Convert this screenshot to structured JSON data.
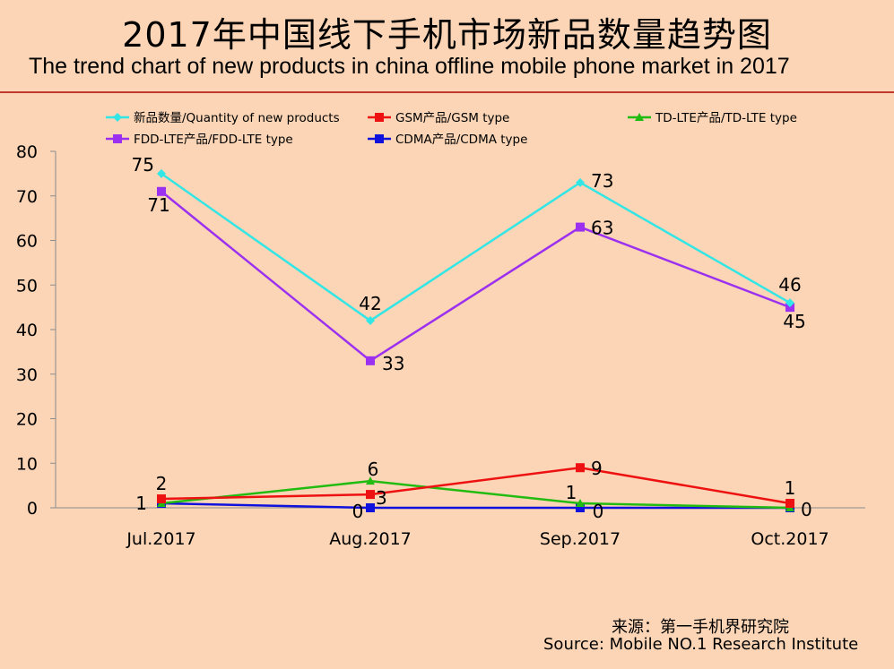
{
  "header": {
    "title_cn": "2017年中国线下手机市场新品数量趋势图",
    "title_en": "The trend chart of new products in china offline mobile phone market in 2017"
  },
  "source": {
    "cn": "来源：第一手机界研究院",
    "en": "Source: Mobile NO.1 Research Institute"
  },
  "chart_data": {
    "type": "line",
    "categories": [
      "Jul.2017",
      "Aug.2017",
      "Sep.2017",
      "Oct.2017"
    ],
    "ylim": [
      0,
      80
    ],
    "yticks": [
      0,
      10,
      20,
      30,
      40,
      50,
      60,
      70,
      80
    ],
    "grid": false,
    "legend_position": "top",
    "series": [
      {
        "name": "新品数量/Quantity of new products",
        "values": [
          75,
          42,
          73,
          46
        ],
        "color": "#33E6E6",
        "marker": "diamond"
      },
      {
        "name": "GSM产品/GSM type",
        "values": [
          2,
          3,
          9,
          1
        ],
        "color": "#EE1111",
        "marker": "square"
      },
      {
        "name": "TD-LTE产品/TD-LTE type",
        "values": [
          1,
          6,
          1,
          0
        ],
        "color": "#22BB11",
        "marker": "triangle"
      },
      {
        "name": "FDD-LTE产品/FDD-LTE type",
        "values": [
          71,
          33,
          63,
          45
        ],
        "color": "#9B30F0",
        "marker": "square"
      },
      {
        "name": "CDMA产品/CDMA type",
        "values": [
          1,
          0,
          0,
          0
        ],
        "color": "#1111DD",
        "marker": "square"
      }
    ],
    "data_labels": [
      {
        "text": "75"
      },
      {
        "text": "42"
      },
      {
        "text": "73"
      },
      {
        "text": "46"
      },
      {
        "text": "71"
      },
      {
        "text": "33"
      },
      {
        "text": "63"
      },
      {
        "text": "45"
      },
      {
        "text": "2"
      },
      {
        "text": "3"
      },
      {
        "text": "9"
      },
      {
        "text": "1"
      },
      {
        "text": "1"
      },
      {
        "text": "6"
      },
      {
        "text": "1"
      },
      {
        "text": "0"
      },
      {
        "text": "0"
      },
      {
        "text": "0"
      }
    ]
  }
}
